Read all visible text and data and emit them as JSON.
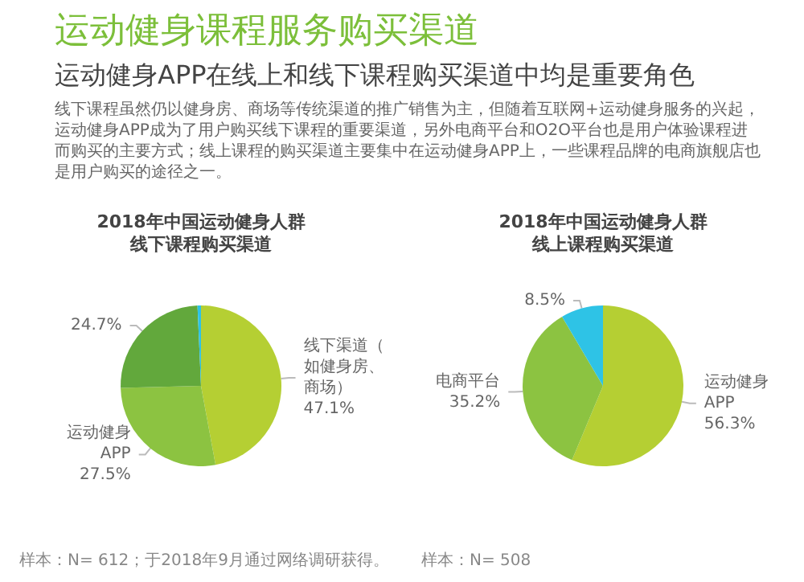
{
  "chart_data": [
    {
      "type": "other",
      "title": "运动健身课程服务购买渠道",
      "subtitle": "运动健身APP在线上和线下课程购买渠道中均是重要角色",
      "annotations": [
        "线下课程虽然仍以健身房、商场等传统渠道的推广销售为主，但随着互联网+运动健身服务的兴起，运动健身APP成为了用户购买线下课程的重要渠道，另外电商平台和O2O平台也是用户体验课程进而购买的主要方式；线上课程的购买渠道主要集中在运动健身APP上，一些课程品牌的电商旗舰店也是用户购买的途径之一。"
      ]
    },
    {
      "type": "pie",
      "title": "2018年中国运动健身人群线下课程购买渠道",
      "categories": [
        "线下渠道（如健身房、商场）",
        "运动健身APP",
        null,
        null
      ],
      "values": [
        47.1,
        27.5,
        24.7,
        0.7
      ],
      "value_labels": [
        "47.1%",
        "27.5%",
        "24.7%",
        null
      ],
      "colors": [
        "#b5cf33",
        "#8cc341",
        "#62a83c",
        "#2ec3e6"
      ],
      "annotations": [
        "样本：N= 612；于2018年9月通过网络调研获得。"
      ]
    },
    {
      "type": "pie",
      "title": "2018年中国运动健身人群线上课程购买渠道",
      "categories": [
        "运动健身APP",
        "电商平台",
        null
      ],
      "values": [
        56.3,
        35.2,
        8.5
      ],
      "value_labels": [
        "56.3%",
        "35.2%",
        "8.5%"
      ],
      "colors": [
        "#b5cf33",
        "#8cc341",
        "#2ec3e6"
      ],
      "annotations": [
        "样本：N= 508"
      ]
    }
  ]
}
